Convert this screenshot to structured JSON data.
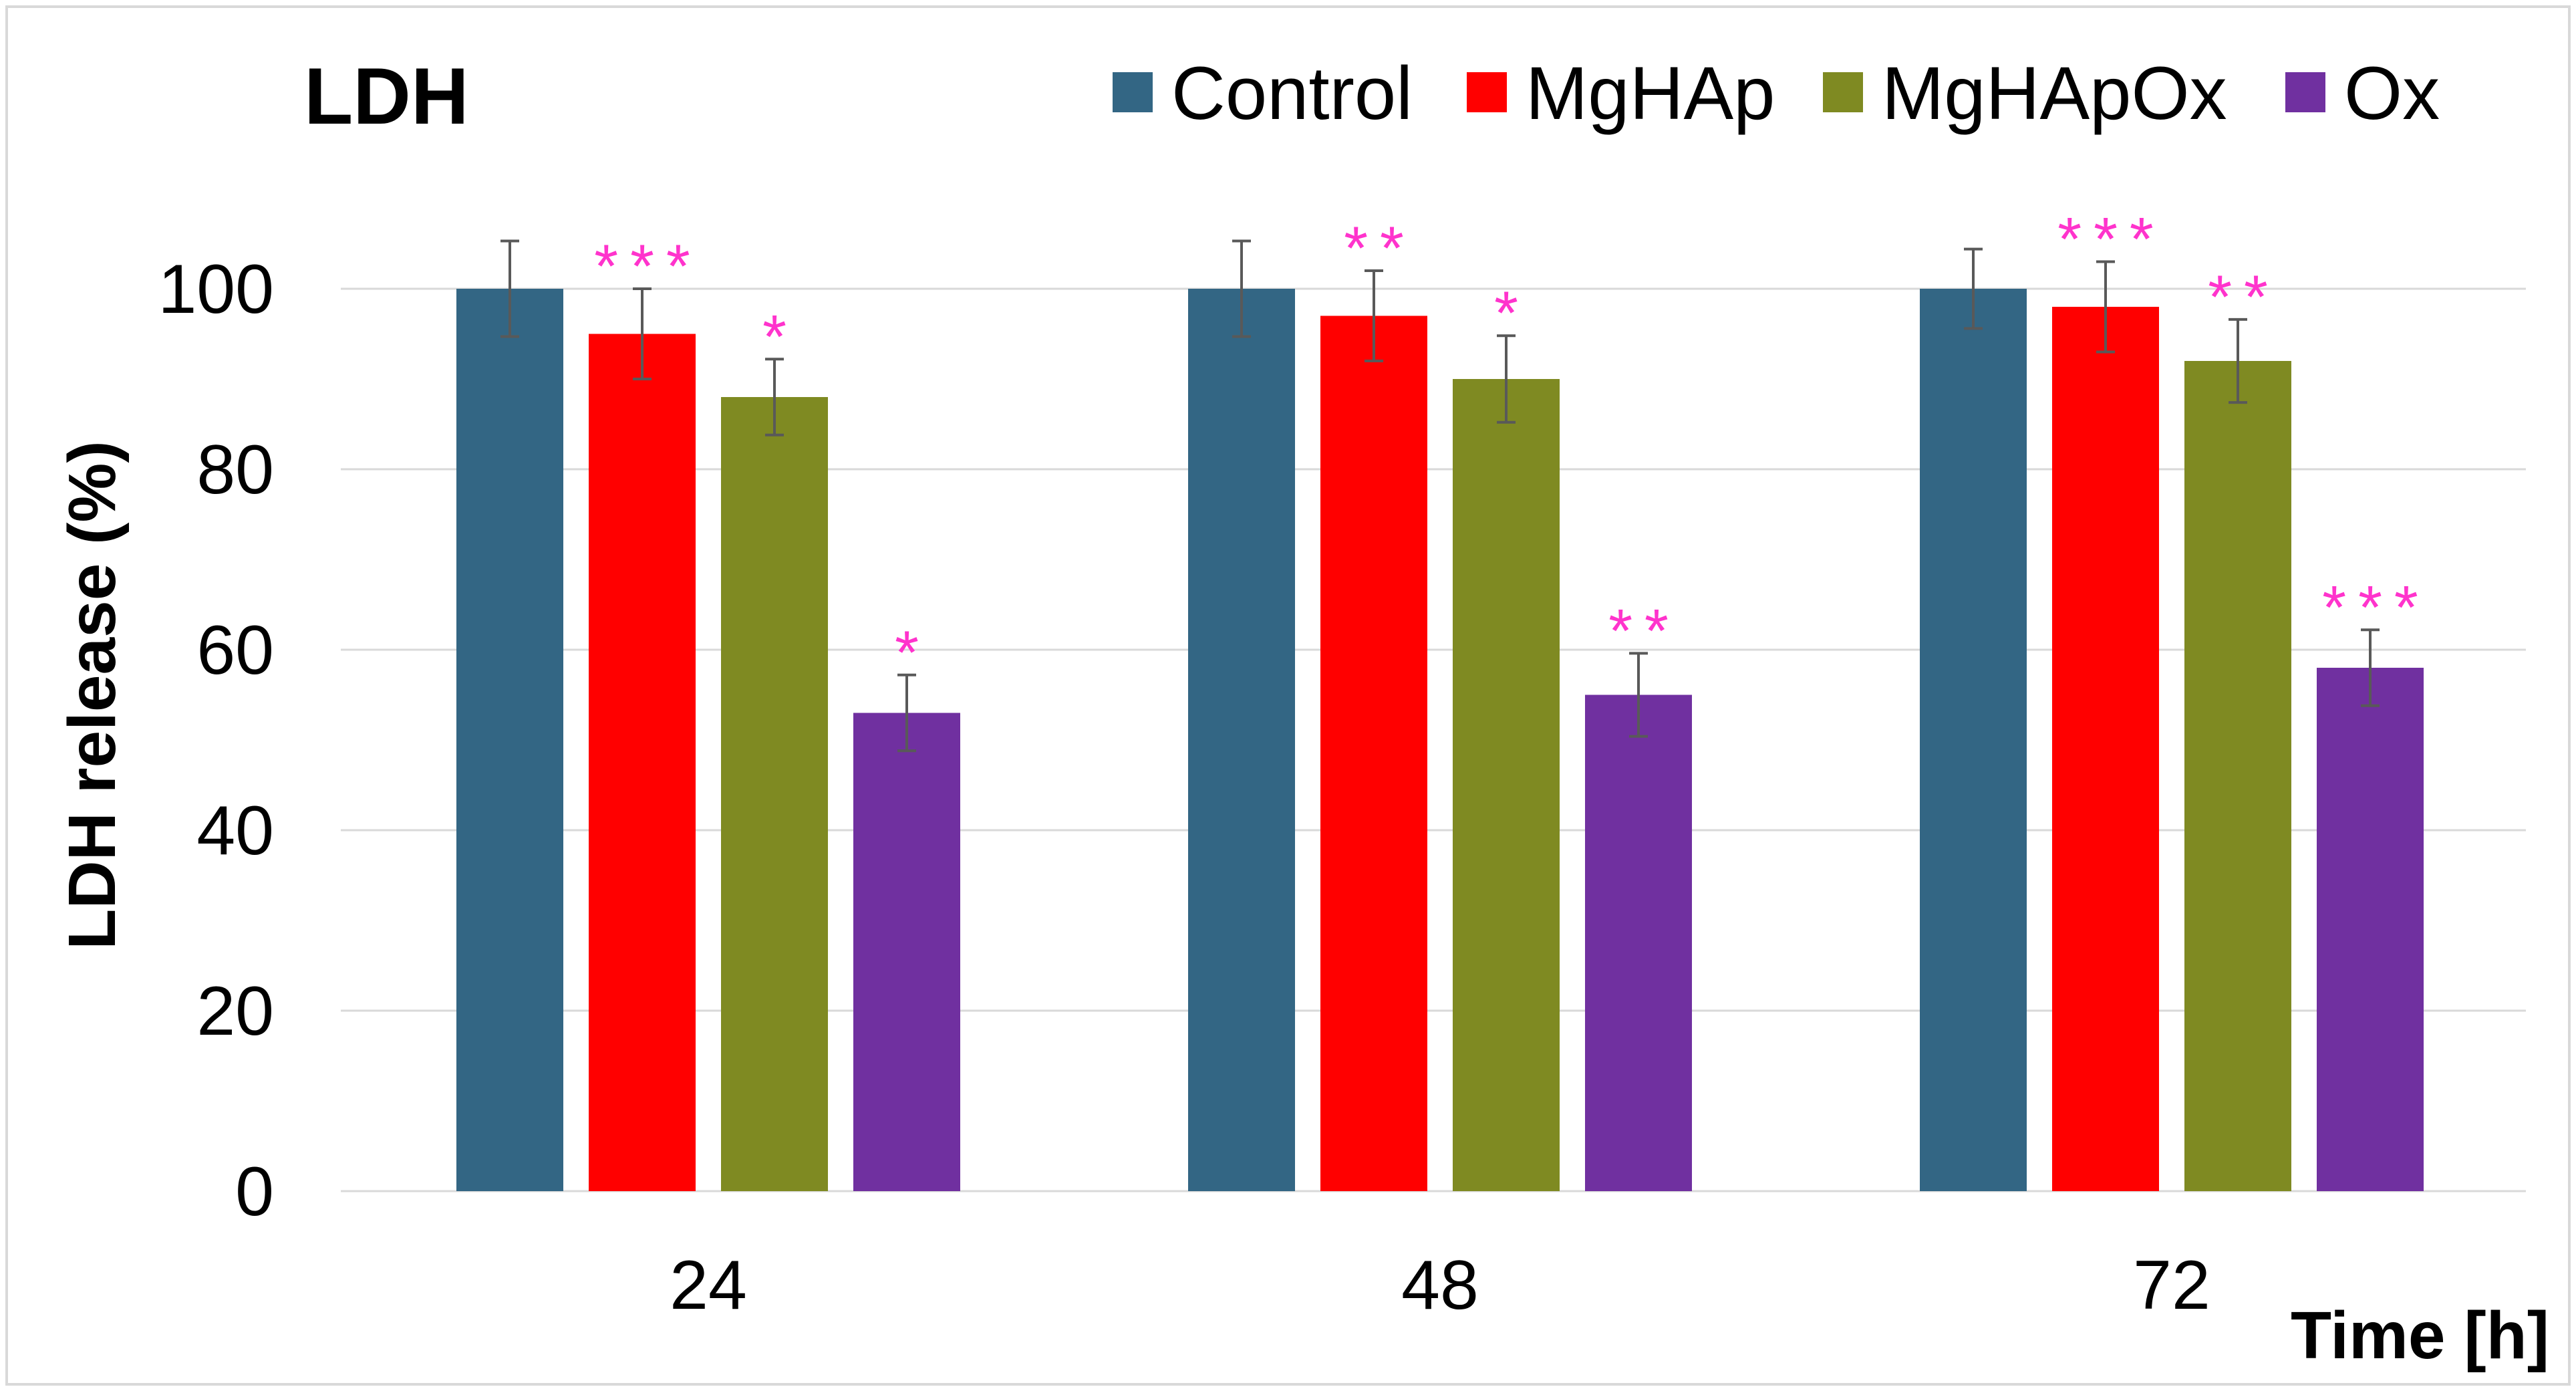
{
  "chart_data": {
    "type": "bar",
    "title": "LDH",
    "xlabel": "Time [h]",
    "ylabel": "LDH release (%)",
    "categories": [
      "24",
      "48",
      "72"
    ],
    "ylim": [
      0,
      100
    ],
    "yticks": [
      0,
      20,
      40,
      60,
      80,
      100
    ],
    "grid": true,
    "legend_position": "top-right",
    "series": [
      {
        "name": "Control",
        "color": "#336684",
        "values": [
          100,
          100,
          100
        ],
        "errors": [
          5.3,
          5.3,
          4.4
        ],
        "significance": [
          "",
          "",
          ""
        ]
      },
      {
        "name": "MgHAp",
        "color": "#ff0000",
        "values": [
          95,
          97,
          98
        ],
        "errors": [
          5.0,
          5.0,
          5.0
        ],
        "significance": [
          "***",
          "**",
          "***"
        ]
      },
      {
        "name": "MgHApOx",
        "color": "#7f8a22",
        "values": [
          88,
          90,
          92
        ],
        "errors": [
          4.2,
          4.8,
          4.6
        ],
        "significance": [
          "*",
          "*",
          "**"
        ]
      },
      {
        "name": "Ox",
        "color": "#7030a0",
        "values": [
          53,
          55,
          58
        ],
        "errors": [
          4.2,
          4.6,
          4.2
        ],
        "significance": [
          "*",
          "**",
          "***"
        ]
      }
    ],
    "significance_color": "#ff33cc",
    "error_bar_color": "#595959",
    "grid_color": "#d9d9d9"
  }
}
